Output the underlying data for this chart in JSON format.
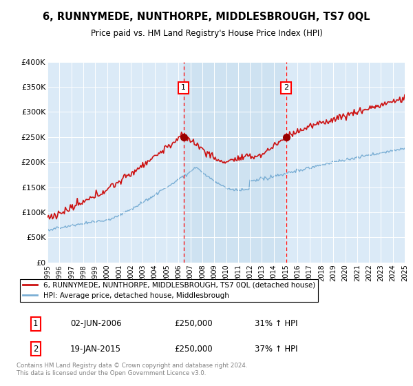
{
  "title": "6, RUNNYMEDE, NUNTHORPE, MIDDLESBROUGH, TS7 0QL",
  "subtitle": "Price paid vs. HM Land Registry's House Price Index (HPI)",
  "bg_color": "#dbeaf7",
  "hpi_color": "#7aaed4",
  "price_color": "#cc1111",
  "shade_color": "#c8dff0",
  "ylim": [
    0,
    400000
  ],
  "yticks": [
    0,
    50000,
    100000,
    150000,
    200000,
    250000,
    300000,
    350000,
    400000
  ],
  "ytick_labels": [
    "£0",
    "£50K",
    "£100K",
    "£150K",
    "£200K",
    "£250K",
    "£300K",
    "£350K",
    "£400K"
  ],
  "sale1_date": 2006.42,
  "sale1_price": 250000,
  "sale2_date": 2015.05,
  "sale2_price": 250000,
  "legend_line1": "6, RUNNYMEDE, NUNTHORPE, MIDDLESBROUGH, TS7 0QL (detached house)",
  "legend_line2": "HPI: Average price, detached house, Middlesbrough",
  "table_row1": [
    "1",
    "02-JUN-2006",
    "£250,000",
    "31% ↑ HPI"
  ],
  "table_row2": [
    "2",
    "19-JAN-2015",
    "£250,000",
    "37% ↑ HPI"
  ],
  "footer": "Contains HM Land Registry data © Crown copyright and database right 2024.\nThis data is licensed under the Open Government Licence v3.0.",
  "xmin": 1995,
  "xmax": 2025
}
